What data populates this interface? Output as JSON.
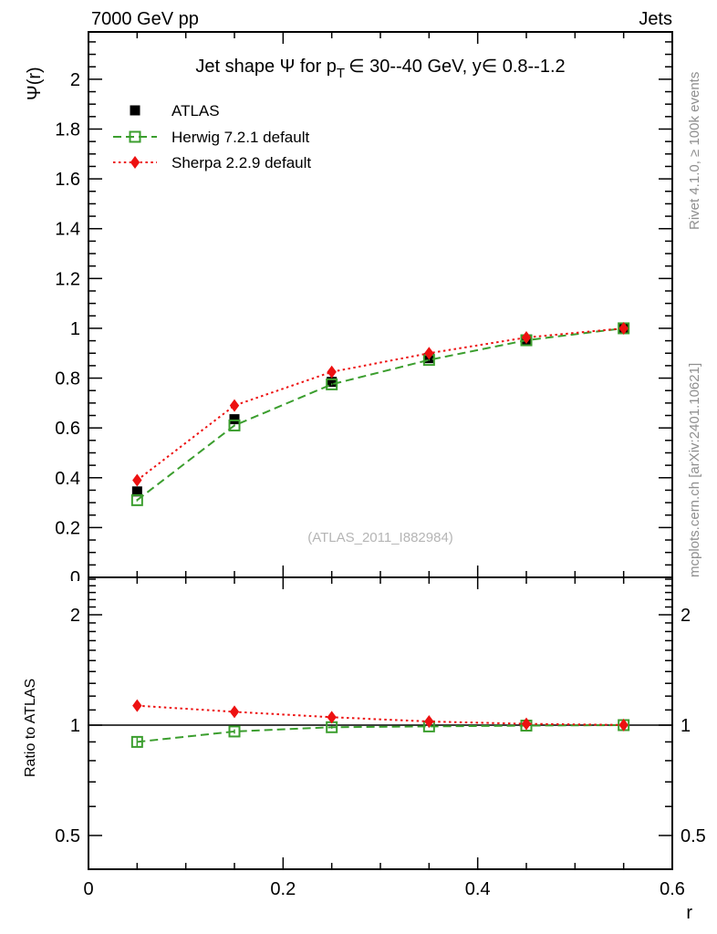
{
  "header": {
    "left": "7000 GeV pp",
    "right": "Jets"
  },
  "side_notes": {
    "top_right": "Rivet 4.1.0, ≥ 100k events",
    "bottom_right": "mcplots.cern.ch [arXiv:2401.10621]"
  },
  "watermark": "(ATLAS_2011_I882984)",
  "chart_data": {
    "type": "line",
    "title": "Jet shape Ψ for p_T ∈ 30--40 GeV, y∈ 0.8--1.2",
    "title_parts": {
      "main": "Jet shape Ψ for p",
      "sub": "T",
      "rest": "∈ 30--40 GeV, y∈ 0.8--1.2"
    },
    "xlabel": "r",
    "ylabel": "Ψ(r)",
    "xlim": [
      0,
      0.6
    ],
    "ylim": [
      0,
      2.19
    ],
    "grid": false,
    "legend_position": "top-left-inside",
    "x_ticks": [
      0,
      0.2,
      0.4,
      0.6
    ],
    "y_ticks": [
      0,
      0.2,
      0.4,
      0.6,
      0.8,
      1,
      1.2,
      1.4,
      1.6,
      1.8,
      2
    ],
    "x": [
      0.05,
      0.15,
      0.25,
      0.35,
      0.45,
      0.55
    ],
    "series": [
      {
        "name": "ATLAS",
        "color": "#000000",
        "marker": "square_filled",
        "line": "none",
        "values": [
          0.345,
          0.635,
          0.785,
          0.88,
          0.955,
          1.0
        ],
        "errors": [
          0.01,
          0.008,
          0.006,
          0.005,
          0.004,
          0.003
        ]
      },
      {
        "name": "Herwig 7.2.1 default",
        "color": "#3b9e2e",
        "marker": "square_open",
        "line": "dashed",
        "values": [
          0.31,
          0.61,
          0.775,
          0.873,
          0.952,
          1.0
        ],
        "errors": [
          0.005,
          0.004,
          0.004,
          0.003,
          0.003,
          0.002
        ]
      },
      {
        "name": "Sherpa 2.2.9 default",
        "color": "#ed1111",
        "marker": "diamond_filled",
        "line": "dotted",
        "values": [
          0.39,
          0.69,
          0.825,
          0.9,
          0.963,
          1.0
        ],
        "errors": [
          0.005,
          0.004,
          0.004,
          0.003,
          0.003,
          0.002
        ]
      }
    ],
    "ratio": {
      "ylabel": "Ratio to ATLAS",
      "yscale": "log",
      "ylim": [
        0.4,
        2.53
      ],
      "y_ticks": [
        0.5,
        1,
        2
      ],
      "reference_line": 1,
      "series": [
        {
          "name": "Herwig 7.2.1 default",
          "color": "#3b9e2e",
          "marker": "square_open",
          "line": "dashed",
          "values": [
            0.9,
            0.961,
            0.987,
            0.992,
            0.997,
            1.0
          ],
          "errors": [
            0.025,
            0.013,
            0.009,
            0.007,
            0.005,
            0.004
          ]
        },
        {
          "name": "Sherpa 2.2.9 default",
          "color": "#ed1111",
          "marker": "diamond_filled",
          "line": "dotted",
          "values": [
            1.13,
            1.087,
            1.051,
            1.023,
            1.008,
            1.001
          ],
          "errors": [
            0.02,
            0.013,
            0.009,
            0.007,
            0.005,
            0.004
          ]
        }
      ]
    }
  }
}
